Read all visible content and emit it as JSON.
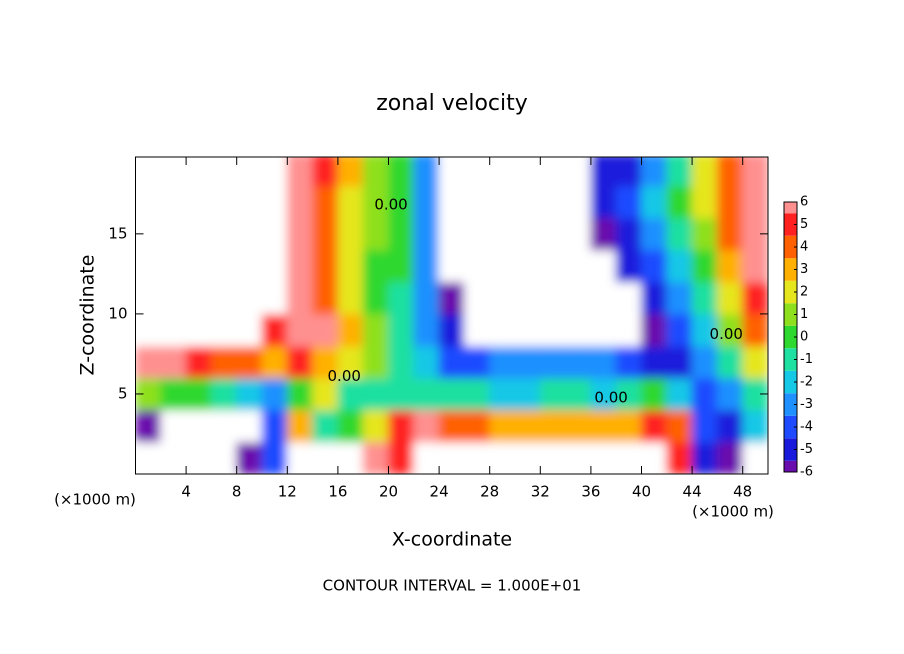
{
  "chart_data": {
    "type": "contour",
    "title": "zonal velocity",
    "xlabel": "X-coordinate",
    "ylabel": "Z-coordinate",
    "units": [
      "(×1000 m)",
      "(×1000 m)"
    ],
    "footer": "CONTOUR INTERVAL = 1.000E+01",
    "xlim": [
      0,
      50
    ],
    "ylim": [
      0,
      19.8
    ],
    "xticks": [
      4,
      8,
      12,
      16,
      20,
      24,
      28,
      32,
      36,
      40,
      44,
      48
    ],
    "yticks": [
      5,
      10,
      15
    ],
    "levels": [
      -6,
      -5,
      -4,
      -3,
      -2,
      -1,
      0,
      1,
      2,
      3,
      4,
      5,
      6
    ],
    "colors": [
      "#6a0dad",
      "#1a1adc",
      "#1e4bff",
      "#1e90ff",
      "#14c8e6",
      "#1ee0a0",
      "#2ed82e",
      "#8ee01e",
      "#e6e61e",
      "#ffb000",
      "#ff6000",
      "#ff2020",
      "#ff9090"
    ],
    "x": [
      1,
      3,
      5,
      7,
      9,
      11,
      13,
      15,
      17,
      19,
      21,
      23,
      25,
      27,
      29,
      31,
      33,
      35,
      37,
      39,
      41,
      43,
      45,
      47,
      49
    ],
    "y": [
      1,
      3,
      5,
      7,
      9,
      11,
      13,
      15,
      17,
      19
    ],
    "z": [
      [
        -8,
        -8,
        -8,
        -8,
        -6,
        -4,
        8,
        8,
        8,
        6,
        5,
        8,
        8,
        8,
        8,
        8,
        8,
        8,
        8,
        8,
        8,
        5,
        -5,
        -6,
        8
      ],
      [
        -6,
        -8,
        -8,
        -8,
        -8,
        -4,
        3,
        -1,
        0,
        2,
        5,
        6,
        4,
        4,
        3,
        3,
        3,
        3,
        3,
        3,
        5,
        4,
        -4,
        -5,
        -2
      ],
      [
        1,
        0,
        0,
        -1,
        -2,
        -3,
        0,
        2,
        -1,
        -1,
        -1,
        -1,
        -1,
        -1,
        -2,
        -2,
        -1,
        -1,
        -2,
        -1,
        0,
        -2,
        -4,
        -3,
        -1
      ],
      [
        6,
        6,
        5,
        4,
        4,
        3,
        5,
        3,
        2,
        1,
        -1,
        -2,
        -4,
        -4,
        -3,
        -3,
        -3,
        -3,
        -3,
        -4,
        -5,
        -5,
        -3,
        -1,
        2
      ],
      [
        8,
        8,
        8,
        8,
        8,
        5,
        6,
        6,
        3,
        1,
        -1,
        -3,
        -5,
        -8,
        -8,
        -8,
        -8,
        -8,
        -8,
        -8,
        -6,
        -4,
        -2,
        1,
        4
      ],
      [
        8,
        8,
        8,
        8,
        8,
        8,
        6,
        4,
        2,
        0,
        -1,
        -3,
        -6,
        -8,
        -8,
        -8,
        -8,
        -8,
        -8,
        -8,
        -5,
        -3,
        -1,
        2,
        5
      ],
      [
        8,
        8,
        8,
        8,
        8,
        8,
        6,
        4,
        2,
        0,
        0,
        -3,
        -8,
        -8,
        -8,
        -8,
        -8,
        -8,
        -8,
        -5,
        -4,
        -2,
        0,
        3,
        6
      ],
      [
        8,
        8,
        8,
        8,
        8,
        8,
        6,
        4,
        2,
        1,
        0,
        -3,
        -8,
        -8,
        -8,
        -8,
        -8,
        -8,
        -6,
        -5,
        -3,
        -1,
        1,
        4,
        6
      ],
      [
        8,
        8,
        8,
        8,
        8,
        7,
        6,
        4,
        2,
        1,
        0,
        -3,
        -8,
        -8,
        -8,
        -8,
        -8,
        -7,
        -5,
        -4,
        -2,
        0,
        2,
        4,
        6
      ],
      [
        8,
        8,
        8,
        8,
        8,
        8,
        6,
        5,
        3,
        1,
        0,
        -3,
        -8,
        -8,
        -8,
        -8,
        -8,
        -8,
        -5,
        -5,
        -3,
        -1,
        2,
        4,
        6
      ]
    ],
    "contour_labels": [
      {
        "text": "0.00",
        "x": 16.5,
        "y": 6.1
      },
      {
        "text": "0.00",
        "x": 20.2,
        "y": 16.8
      },
      {
        "text": "0.00",
        "x": 37.6,
        "y": 4.75
      },
      {
        "text": "0.00",
        "x": 46.7,
        "y": 8.7
      }
    ]
  }
}
